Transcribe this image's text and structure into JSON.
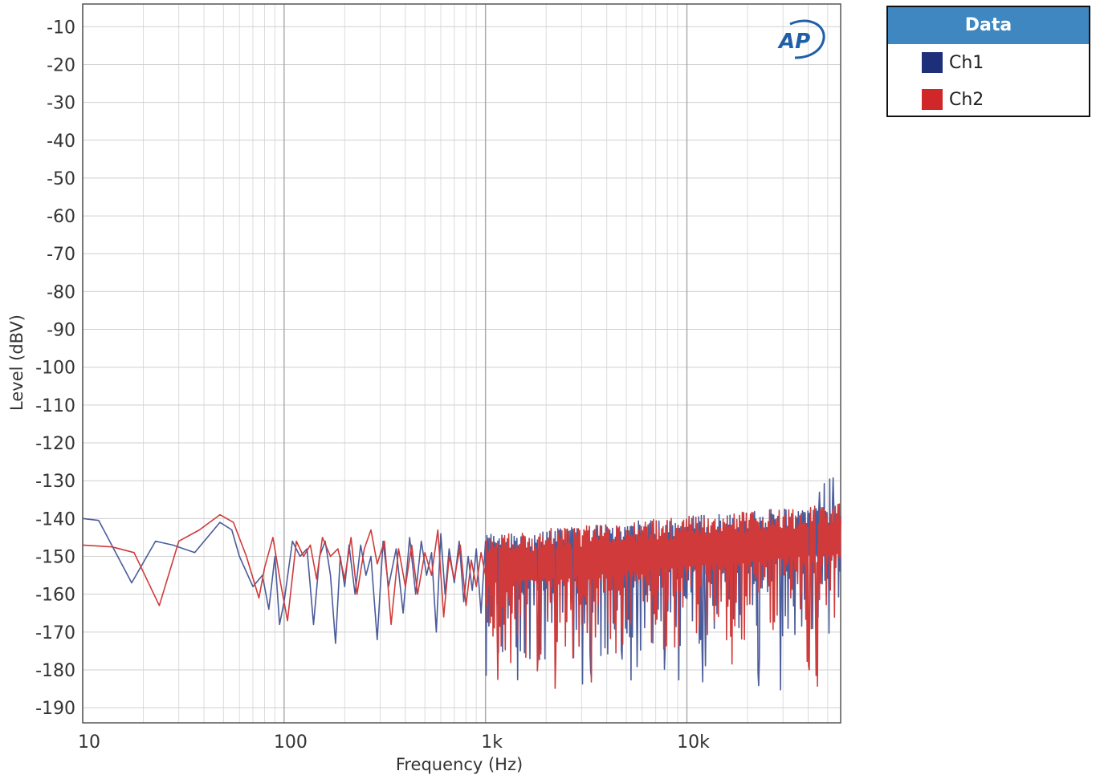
{
  "chart_data": {
    "type": "line",
    "xlabel": "Frequency (Hz)",
    "ylabel": "Level (dBV)",
    "xscale": "log",
    "xlim": [
      10,
      58000
    ],
    "ylim": [
      -194,
      -4
    ],
    "grid": true,
    "x_ticks": [
      {
        "value": 10,
        "label": "10"
      },
      {
        "value": 100,
        "label": "100"
      },
      {
        "value": 1000,
        "label": "1k"
      },
      {
        "value": 10000,
        "label": "10k"
      }
    ],
    "y_ticks": [
      -10,
      -20,
      -30,
      -40,
      -50,
      -60,
      -70,
      -80,
      -90,
      -100,
      -110,
      -120,
      -130,
      -140,
      -150,
      -160,
      -170,
      -180,
      -190
    ],
    "legend": {
      "title": "Data",
      "position": "top-right outside"
    },
    "logo_text": "AP",
    "series": [
      {
        "name": "Ch1",
        "color": "#4a5b9a",
        "x": [
          10,
          12,
          17.5,
          23,
          28,
          36,
          48,
          55,
          60,
          70,
          78,
          84,
          90,
          95,
          100,
          110,
          120,
          130,
          140,
          150,
          160,
          170,
          180,
          190,
          200,
          210,
          225,
          240,
          255,
          270,
          290,
          310,
          330,
          360,
          390,
          420,
          450,
          480,
          510,
          540,
          570,
          600,
          630,
          660,
          700,
          740,
          780,
          820,
          860,
          900,
          950,
          1000
        ],
        "values": [
          -140,
          -140.5,
          -157,
          -146,
          -147,
          -149,
          -141,
          -143,
          -150,
          -158,
          -155,
          -164,
          -150,
          -168,
          -162,
          -146,
          -150,
          -148,
          -168,
          -150,
          -146,
          -155,
          -173,
          -150,
          -158,
          -147,
          -160,
          -147,
          -155,
          -150,
          -172,
          -146,
          -158,
          -148,
          -165,
          -145,
          -160,
          -146,
          -155,
          -149,
          -170,
          -144,
          -160,
          -148,
          -157,
          -146,
          -162,
          -150,
          -159,
          -148,
          -165,
          -146
        ]
      },
      {
        "name": "Ch2",
        "color": "#d03a3a",
        "x": [
          10,
          14,
          18,
          24,
          30,
          38,
          48,
          56,
          65,
          75,
          80,
          88,
          96,
          104,
          115,
          125,
          135,
          145,
          155,
          170,
          185,
          200,
          215,
          230,
          250,
          270,
          290,
          315,
          340,
          370,
          400,
          430,
          460,
          500,
          540,
          580,
          620,
          660,
          700,
          750,
          800,
          850,
          900,
          950,
          1000
        ],
        "values": [
          -147,
          -147.5,
          -149,
          -163,
          -146,
          -143,
          -139,
          -141,
          -150,
          -161,
          -153,
          -145,
          -157,
          -167,
          -146,
          -150,
          -147,
          -156,
          -145,
          -150,
          -148,
          -156,
          -145,
          -160,
          -148,
          -143,
          -152,
          -146,
          -168,
          -148,
          -158,
          -147,
          -160,
          -149,
          -155,
          -143,
          -166,
          -150,
          -156,
          -147,
          -163,
          -151,
          -158,
          -149,
          -155
        ]
      }
    ]
  }
}
